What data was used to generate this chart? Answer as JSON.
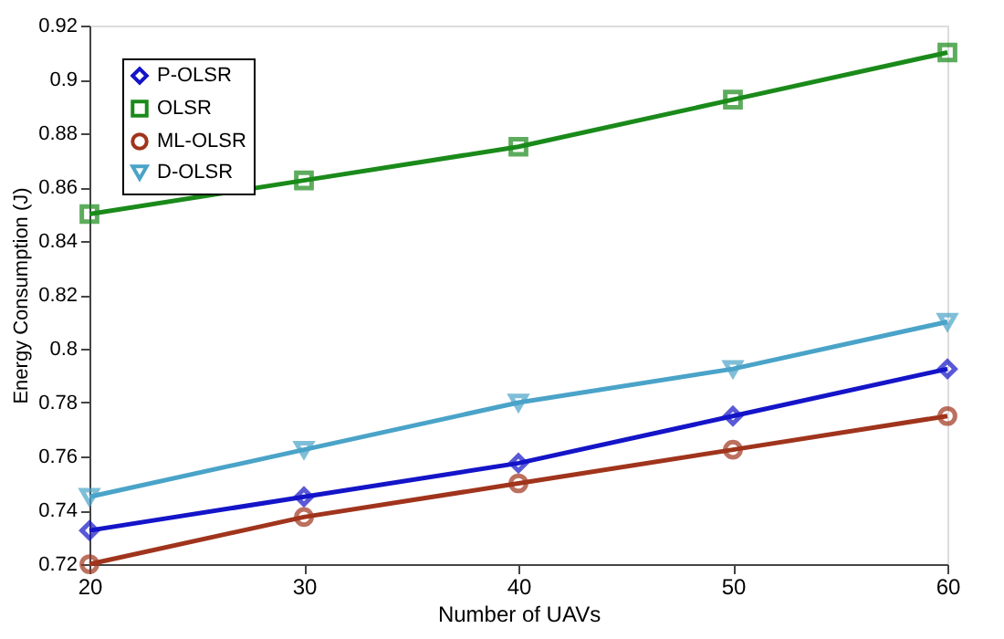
{
  "chart_data": {
    "type": "line",
    "xlabel": "Number of UAVs",
    "ylabel": "Energy Consumption (J)",
    "x": [
      20,
      30,
      40,
      50,
      60
    ],
    "series": [
      {
        "name": "P-OLSR",
        "color": "#1414c8",
        "marker": "diamond",
        "values": [
          0.7325,
          0.745,
          0.7575,
          0.775,
          0.7925
        ]
      },
      {
        "name": "OLSR",
        "color": "#1a8a1a",
        "marker": "square",
        "values": [
          0.85,
          0.8625,
          0.875,
          0.8925,
          0.91
        ]
      },
      {
        "name": "ML-OLSR",
        "color": "#a0341c",
        "marker": "circle",
        "values": [
          0.72,
          0.7375,
          0.75,
          0.7625,
          0.775
        ]
      },
      {
        "name": "D-OLSR",
        "color": "#4aa3c8",
        "marker": "triangle",
        "values": [
          0.745,
          0.7625,
          0.78,
          0.7925,
          0.81
        ]
      }
    ],
    "xlim": [
      20,
      60
    ],
    "xticks": [
      20,
      30,
      40,
      50,
      60
    ],
    "ylim": [
      0.72,
      0.92
    ],
    "yticks": [
      0.72,
      0.74,
      0.76,
      0.78,
      0.8,
      0.82,
      0.84,
      0.86,
      0.88,
      0.9,
      0.92
    ],
    "legend": "top left",
    "grid": false,
    "line_style": "solid"
  }
}
